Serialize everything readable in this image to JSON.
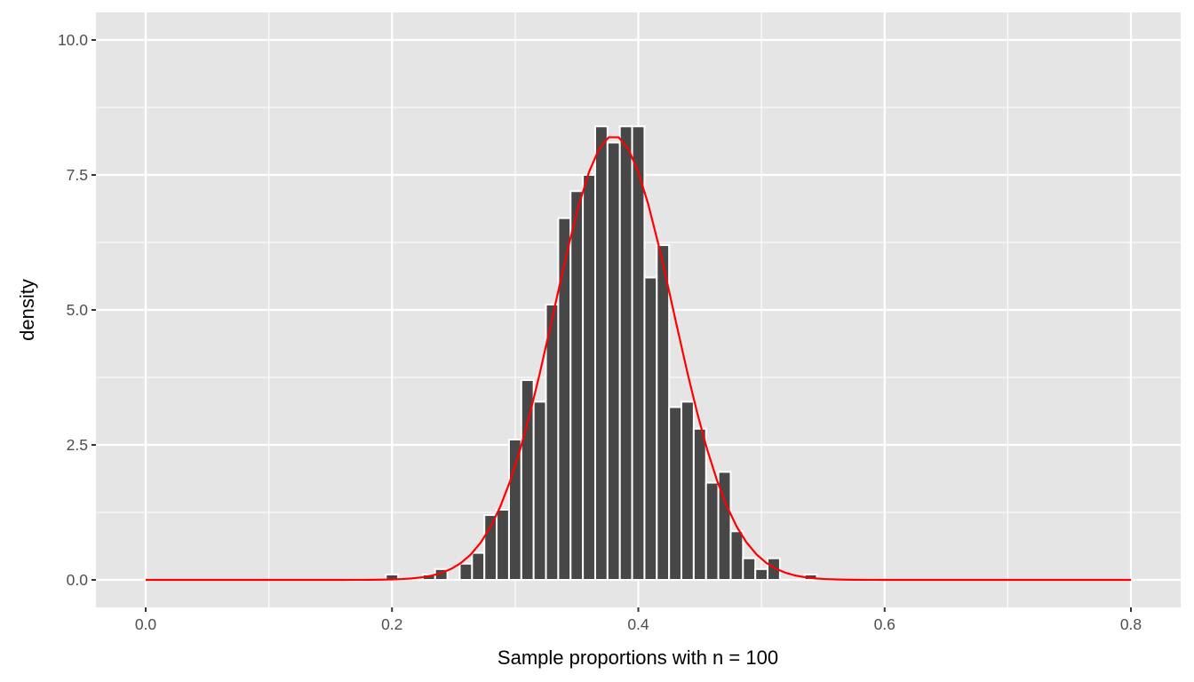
{
  "chart_data": {
    "type": "bar",
    "subtype": "histogram-with-density-curve",
    "title": "",
    "xlabel": "Sample proportions with n = 100",
    "ylabel": "density",
    "xlim": [
      -0.04,
      0.84
    ],
    "ylim": [
      -0.45,
      10.5
    ],
    "x_ticks": [
      0.0,
      0.2,
      0.4,
      0.6,
      0.8
    ],
    "x_tick_labels": [
      "0.0",
      "0.2",
      "0.4",
      "0.6",
      "0.8"
    ],
    "y_ticks": [
      0.0,
      2.5,
      5.0,
      7.5,
      10.0
    ],
    "y_tick_labels": [
      "0.0",
      "2.5",
      "5.0",
      "7.5",
      "10.0"
    ],
    "grid": true,
    "bin_width": 0.01,
    "histogram": {
      "bin_centers": [
        0.2,
        0.23,
        0.24,
        0.26,
        0.27,
        0.28,
        0.29,
        0.3,
        0.31,
        0.32,
        0.33,
        0.34,
        0.35,
        0.36,
        0.37,
        0.38,
        0.39,
        0.4,
        0.41,
        0.42,
        0.43,
        0.44,
        0.45,
        0.46,
        0.47,
        0.48,
        0.49,
        0.5,
        0.51,
        0.54
      ],
      "densities": [
        0.1,
        0.1,
        0.2,
        0.3,
        0.5,
        1.2,
        1.3,
        2.6,
        3.7,
        3.3,
        5.1,
        6.7,
        7.2,
        7.5,
        8.4,
        8.1,
        8.4,
        8.4,
        5.6,
        6.2,
        3.2,
        3.3,
        2.8,
        1.8,
        2.0,
        0.9,
        0.4,
        0.2,
        0.4,
        0.1
      ],
      "fill": "#474747",
      "outline": "#ffffff"
    },
    "curve": {
      "type": "normal-density",
      "mean": 0.38,
      "sd": 0.0485,
      "x_range": [
        0.0,
        0.8
      ],
      "peak": 8.22,
      "color": "#ff0000"
    },
    "colors": {
      "panel_background": "#e5e5e5",
      "grid": "#ffffff",
      "tick_text": "#4d4d4d",
      "tick_mark": "#333333"
    }
  }
}
